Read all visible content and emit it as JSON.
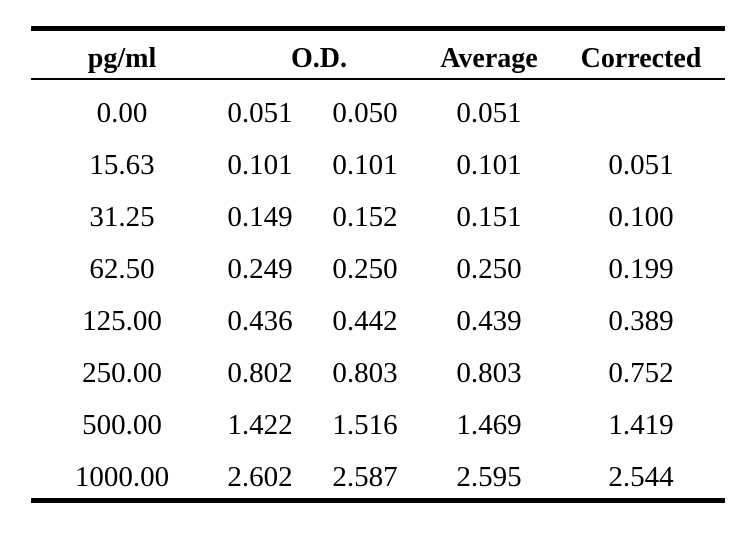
{
  "table": {
    "headers": {
      "concentration": "pg/ml",
      "od": "O.D.",
      "average": "Average",
      "corrected": "Corrected"
    },
    "rows": [
      {
        "pg_ml": "0.00",
        "od1": "0.051",
        "od2": "0.050",
        "average": "0.051",
        "corrected": ""
      },
      {
        "pg_ml": "15.63",
        "od1": "0.101",
        "od2": "0.101",
        "average": "0.101",
        "corrected": "0.051"
      },
      {
        "pg_ml": "31.25",
        "od1": "0.149",
        "od2": "0.152",
        "average": "0.151",
        "corrected": "0.100"
      },
      {
        "pg_ml": "62.50",
        "od1": "0.249",
        "od2": "0.250",
        "average": "0.250",
        "corrected": "0.199"
      },
      {
        "pg_ml": "125.00",
        "od1": "0.436",
        "od2": "0.442",
        "average": "0.439",
        "corrected": "0.389"
      },
      {
        "pg_ml": "250.00",
        "od1": "0.802",
        "od2": "0.803",
        "average": "0.803",
        "corrected": "0.752"
      },
      {
        "pg_ml": "500.00",
        "od1": "1.422",
        "od2": "1.516",
        "average": "1.469",
        "corrected": "1.419"
      },
      {
        "pg_ml": "1000.00",
        "od1": "2.602",
        "od2": "2.587",
        "average": "2.595",
        "corrected": "2.544"
      }
    ]
  }
}
